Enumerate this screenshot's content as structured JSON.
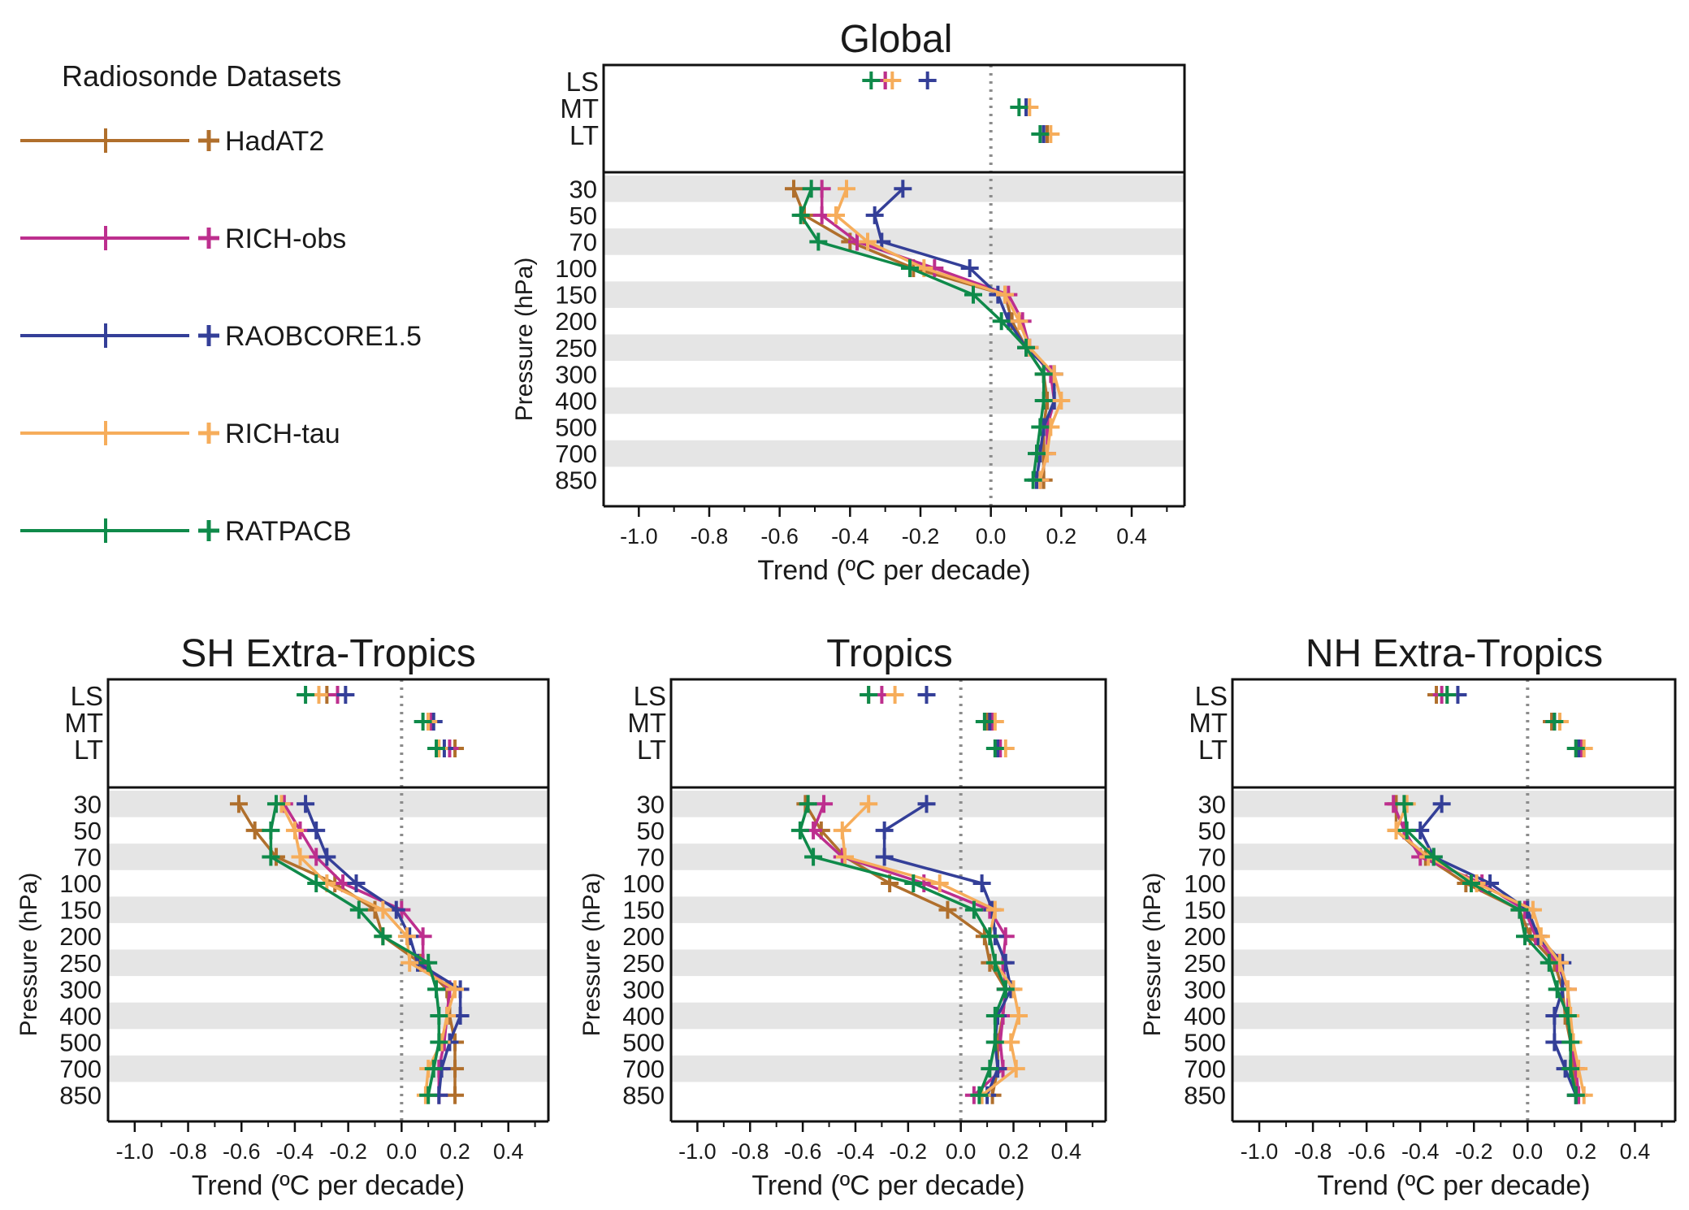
{
  "legend": {
    "title": "Radiosonde Datasets",
    "items": [
      {
        "label": "HadAT2",
        "color": "#b06f2c"
      },
      {
        "label": "RICH-obs",
        "color": "#bd2f8e"
      },
      {
        "label": "RAOBCORE1.5",
        "color": "#343f98"
      },
      {
        "label": "RICH-tau",
        "color": "#f6ad5b"
      },
      {
        "label": "RATPACB",
        "color": "#0f8a4a"
      }
    ]
  },
  "chart_data": [
    {
      "type": "line",
      "title": "Global",
      "xlabel": "Trend (ºC per decade)",
      "ylabel": "Pressure (hPa)",
      "xlim": [
        -1.1,
        0.55
      ],
      "xticks": [
        "-1.0",
        "-0.8",
        "-0.6",
        "-0.4",
        "-0.2",
        "0.0",
        "0.2",
        "0.4"
      ],
      "layer_labels": [
        "LS",
        "MT",
        "LT"
      ],
      "levels": [
        "30",
        "50",
        "70",
        "100",
        "150",
        "200",
        "250",
        "300",
        "400",
        "500",
        "700",
        "850"
      ],
      "series": [
        {
          "name": "HadAT2",
          "layers": [
            -0.3,
            0.1,
            0.16
          ],
          "values": [
            -0.56,
            -0.53,
            -0.4,
            -0.22,
            0.04,
            0.06,
            0.1,
            0.15,
            0.16,
            0.15,
            0.15,
            0.15
          ]
        },
        {
          "name": "RICH-obs",
          "layers": [
            -0.3,
            0.1,
            0.15
          ],
          "values": [
            -0.48,
            -0.48,
            -0.38,
            -0.16,
            0.05,
            0.09,
            0.11,
            0.17,
            0.18,
            0.16,
            0.16,
            0.14
          ]
        },
        {
          "name": "RAOBCORE1.5",
          "layers": [
            -0.18,
            0.1,
            0.15
          ],
          "values": [
            -0.25,
            -0.33,
            -0.31,
            -0.06,
            0.02,
            0.05,
            0.1,
            0.18,
            0.18,
            0.15,
            0.14,
            0.13
          ]
        },
        {
          "name": "RICH-tau",
          "layers": [
            -0.28,
            0.11,
            0.17
          ],
          "values": [
            -0.41,
            -0.44,
            -0.35,
            -0.19,
            0.04,
            0.08,
            0.11,
            0.18,
            0.2,
            0.17,
            0.16,
            0.14
          ]
        },
        {
          "name": "RATPACB",
          "layers": [
            -0.34,
            0.08,
            0.14
          ],
          "values": [
            -0.51,
            -0.54,
            -0.49,
            -0.23,
            -0.05,
            0.03,
            0.1,
            0.15,
            0.15,
            0.14,
            0.13,
            0.12
          ]
        }
      ]
    },
    {
      "type": "line",
      "title": "SH Extra-Tropics",
      "xlabel": "Trend (ºC per decade)",
      "ylabel": "Pressure (hPa)",
      "xlim": [
        -1.1,
        0.55
      ],
      "xticks": [
        "-1.0",
        "-0.8",
        "-0.6",
        "-0.4",
        "-0.2",
        "0.0",
        "0.2",
        "0.4"
      ],
      "layer_labels": [
        "LS",
        "MT",
        "LT"
      ],
      "levels": [
        "30",
        "50",
        "70",
        "100",
        "150",
        "200",
        "250",
        "300",
        "400",
        "500",
        "700",
        "850"
      ],
      "series": [
        {
          "name": "HadAT2",
          "layers": [
            -0.28,
            0.1,
            0.2
          ],
          "values": [
            -0.61,
            -0.55,
            -0.47,
            -0.25,
            -0.1,
            -0.07,
            0.07,
            0.17,
            0.18,
            0.2,
            0.2,
            0.2
          ]
        },
        {
          "name": "RICH-obs",
          "layers": [
            -0.24,
            0.11,
            0.18
          ],
          "values": [
            -0.44,
            -0.38,
            -0.32,
            -0.22,
            0.0,
            0.08,
            0.08,
            0.18,
            0.17,
            0.16,
            0.14,
            0.14
          ]
        },
        {
          "name": "RAOBCORE1.5",
          "layers": [
            -0.21,
            0.12,
            0.16
          ],
          "values": [
            -0.36,
            -0.32,
            -0.28,
            -0.17,
            -0.02,
            0.03,
            0.06,
            0.22,
            0.22,
            0.18,
            0.15,
            0.14
          ]
        },
        {
          "name": "RICH-tau",
          "layers": [
            -0.31,
            0.1,
            0.14
          ],
          "values": [
            -0.45,
            -0.4,
            -0.38,
            -0.28,
            -0.07,
            0.02,
            0.03,
            0.2,
            0.17,
            0.15,
            0.1,
            0.09
          ]
        },
        {
          "name": "RATPACB",
          "layers": [
            -0.36,
            0.08,
            0.13
          ],
          "values": [
            -0.47,
            -0.49,
            -0.49,
            -0.32,
            -0.16,
            -0.07,
            0.1,
            0.13,
            0.14,
            0.14,
            0.12,
            0.1
          ]
        }
      ]
    },
    {
      "type": "line",
      "title": "Tropics",
      "xlabel": "Trend (ºC per decade)",
      "ylabel": "Pressure (hPa)",
      "xlim": [
        -1.1,
        0.55
      ],
      "xticks": [
        "-1.0",
        "-0.8",
        "-0.6",
        "-0.4",
        "-0.2",
        "0.0",
        "0.2",
        "0.4"
      ],
      "layer_labels": [
        "LS",
        "MT",
        "LT"
      ],
      "levels": [
        "30",
        "50",
        "70",
        "100",
        "150",
        "200",
        "250",
        "300",
        "400",
        "500",
        "700",
        "850"
      ],
      "series": [
        {
          "name": "HadAT2",
          "layers": [
            -0.35,
            0.1,
            0.14
          ],
          "values": [
            -0.59,
            -0.53,
            -0.44,
            -0.27,
            -0.05,
            0.09,
            0.11,
            0.17,
            0.16,
            0.14,
            0.14,
            0.12
          ]
        },
        {
          "name": "RICH-obs",
          "layers": [
            -0.3,
            0.12,
            0.15
          ],
          "values": [
            -0.52,
            -0.56,
            -0.45,
            -0.14,
            0.11,
            0.17,
            0.16,
            0.17,
            0.16,
            0.15,
            0.16,
            0.05
          ]
        },
        {
          "name": "RAOBCORE1.5",
          "layers": [
            -0.13,
            0.11,
            0.14
          ],
          "values": [
            -0.13,
            -0.29,
            -0.29,
            0.08,
            0.12,
            0.13,
            0.17,
            0.19,
            0.14,
            0.13,
            0.14,
            0.1
          ]
        },
        {
          "name": "RICH-tau",
          "layers": [
            -0.25,
            0.13,
            0.17
          ],
          "values": [
            -0.35,
            -0.45,
            -0.44,
            -0.08,
            0.13,
            0.11,
            0.13,
            0.2,
            0.22,
            0.19,
            0.21,
            0.08
          ]
        },
        {
          "name": "RATPACB",
          "layers": [
            -0.35,
            0.09,
            0.13
          ],
          "values": [
            -0.58,
            -0.61,
            -0.56,
            -0.18,
            0.05,
            0.11,
            0.13,
            0.17,
            0.13,
            0.13,
            0.11,
            0.07
          ]
        }
      ]
    },
    {
      "type": "line",
      "title": "NH Extra-Tropics",
      "xlabel": "Trend (ºC per decade)",
      "ylabel": "Pressure (hPa)",
      "xlim": [
        -1.1,
        0.55
      ],
      "xticks": [
        "-1.0",
        "-0.8",
        "-0.6",
        "-0.4",
        "-0.2",
        "0.0",
        "0.2",
        "0.4"
      ],
      "layer_labels": [
        "LS",
        "MT",
        "LT"
      ],
      "levels": [
        "30",
        "50",
        "70",
        "100",
        "150",
        "200",
        "250",
        "300",
        "400",
        "500",
        "700",
        "850"
      ],
      "series": [
        {
          "name": "HadAT2",
          "layers": [
            -0.34,
            0.09,
            0.18
          ],
          "values": [
            -0.49,
            -0.49,
            -0.38,
            -0.23,
            -0.03,
            0.01,
            0.1,
            0.13,
            0.14,
            0.16,
            0.17,
            0.18
          ]
        },
        {
          "name": "RICH-obs",
          "layers": [
            -0.32,
            0.1,
            0.2
          ],
          "values": [
            -0.5,
            -0.46,
            -0.4,
            -0.17,
            -0.01,
            0.03,
            0.11,
            0.15,
            0.15,
            0.16,
            0.18,
            0.19
          ]
        },
        {
          "name": "RAOBCORE1.5",
          "layers": [
            -0.26,
            0.1,
            0.19
          ],
          "values": [
            -0.32,
            -0.4,
            -0.35,
            -0.14,
            0.0,
            0.04,
            0.13,
            0.13,
            0.1,
            0.1,
            0.14,
            0.18
          ]
        },
        {
          "name": "RICH-tau",
          "layers": [
            -0.3,
            0.12,
            0.21
          ],
          "values": [
            -0.45,
            -0.49,
            -0.37,
            -0.19,
            0.02,
            0.05,
            0.12,
            0.15,
            0.16,
            0.17,
            0.19,
            0.21
          ]
        },
        {
          "name": "RATPACB",
          "layers": [
            -0.3,
            0.1,
            0.18
          ],
          "values": [
            -0.46,
            -0.45,
            -0.35,
            -0.21,
            -0.03,
            -0.01,
            0.08,
            0.11,
            0.15,
            0.16,
            0.16,
            0.18
          ]
        }
      ]
    }
  ]
}
